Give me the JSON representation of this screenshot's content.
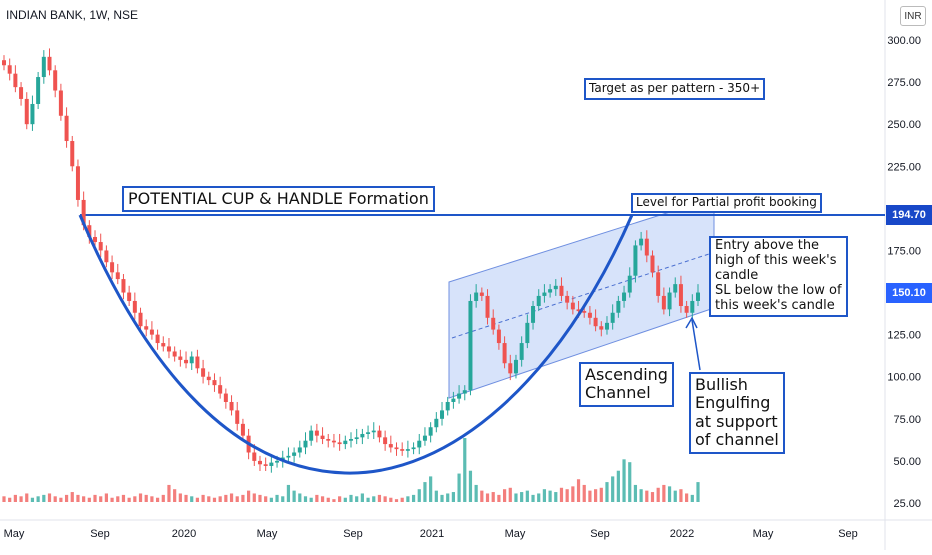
{
  "header": {
    "symbol_line": "INDIAN BANK, 1W, NSE",
    "currency": "INR"
  },
  "price_tags": {
    "resistance": "194.70",
    "last": "150.10"
  },
  "annotations": {
    "cup_handle": "POTENTIAL CUP & HANDLE Formation",
    "target": "Target as per pattern - 350+",
    "partial_profit": "Level for Partial profit booking",
    "entry": "Entry above the\nhigh of this week's\ncandle\nSL below the low of\nthis week's candle",
    "channel": "Ascending\nChannel",
    "engulfing": "Bullish\nEngulfing\nat support\nof channel"
  },
  "colors": {
    "up": "#26a69a",
    "down": "#ef5350",
    "trend": "#1e56c8",
    "channel_fill": "#c9d9f8",
    "last_tag": "#2962ff",
    "resistance_tag": "#1848c8"
  },
  "chart_data": {
    "type": "candlestick",
    "title": "INDIAN BANK, 1W, NSE",
    "currency": "INR",
    "xlim": [
      "2019-05",
      "2022-10"
    ],
    "ylim": [
      20,
      310
    ],
    "y_ticks": [
      "300.00",
      "275.00",
      "250.00",
      "225.00",
      "200.00",
      "175.00",
      "150.00",
      "125.00",
      "100.00",
      "75.00",
      "50.00",
      "25.00"
    ],
    "x_ticks": [
      "May",
      "Sep",
      "2020",
      "May",
      "Sep",
      "2021",
      "May",
      "Sep",
      "2022",
      "May",
      "Sep"
    ],
    "resistance_level": 194.7,
    "last_price": 150.1,
    "weekly_closes": [
      285,
      280,
      272,
      265,
      250,
      262,
      278,
      290,
      282,
      270,
      255,
      240,
      225,
      205,
      190,
      183,
      180,
      175,
      168,
      162,
      158,
      150,
      145,
      138,
      130,
      128,
      125,
      120,
      118,
      115,
      112,
      110,
      108,
      112,
      105,
      100,
      98,
      95,
      90,
      85,
      80,
      72,
      65,
      55,
      50,
      48,
      47,
      49,
      50,
      52,
      53,
      55,
      58,
      62,
      68,
      65,
      63,
      62,
      61,
      60,
      62,
      63,
      64,
      66,
      67,
      68,
      64,
      60,
      58,
      57,
      56,
      57,
      58,
      62,
      65,
      70,
      75,
      80,
      85,
      87,
      90,
      92,
      145,
      150,
      148,
      135,
      128,
      120,
      108,
      102,
      110,
      120,
      132,
      142,
      148,
      150,
      152,
      154,
      148,
      144,
      140,
      139,
      138,
      135,
      130,
      128,
      132,
      138,
      145,
      150,
      160,
      178,
      182,
      172,
      162,
      148,
      140,
      150,
      155,
      142,
      138,
      145,
      150
    ],
    "weekly_volume": [
      4,
      3,
      5,
      4,
      6,
      3,
      4,
      5,
      6,
      4,
      3,
      5,
      7,
      5,
      4,
      3,
      5,
      4,
      6,
      3,
      4,
      5,
      3,
      4,
      6,
      5,
      4,
      3,
      5,
      12,
      9,
      6,
      5,
      4,
      3,
      5,
      4,
      3,
      4,
      5,
      6,
      4,
      5,
      8,
      6,
      5,
      4,
      3,
      5,
      4,
      12,
      8,
      6,
      4,
      3,
      5,
      4,
      3,
      2,
      4,
      3,
      5,
      4,
      6,
      3,
      4,
      5,
      4,
      3,
      2,
      3,
      4,
      5,
      9,
      14,
      18,
      8,
      5,
      6,
      7,
      20,
      45,
      22,
      12,
      8,
      6,
      7,
      5,
      9,
      10,
      6,
      7,
      8,
      5,
      6,
      9,
      8,
      7,
      10,
      9,
      11,
      16,
      12,
      8,
      9,
      10,
      14,
      18,
      22,
      30,
      28,
      12,
      9,
      8,
      7,
      10,
      12,
      11,
      8,
      9,
      6,
      5,
      14
    ]
  }
}
